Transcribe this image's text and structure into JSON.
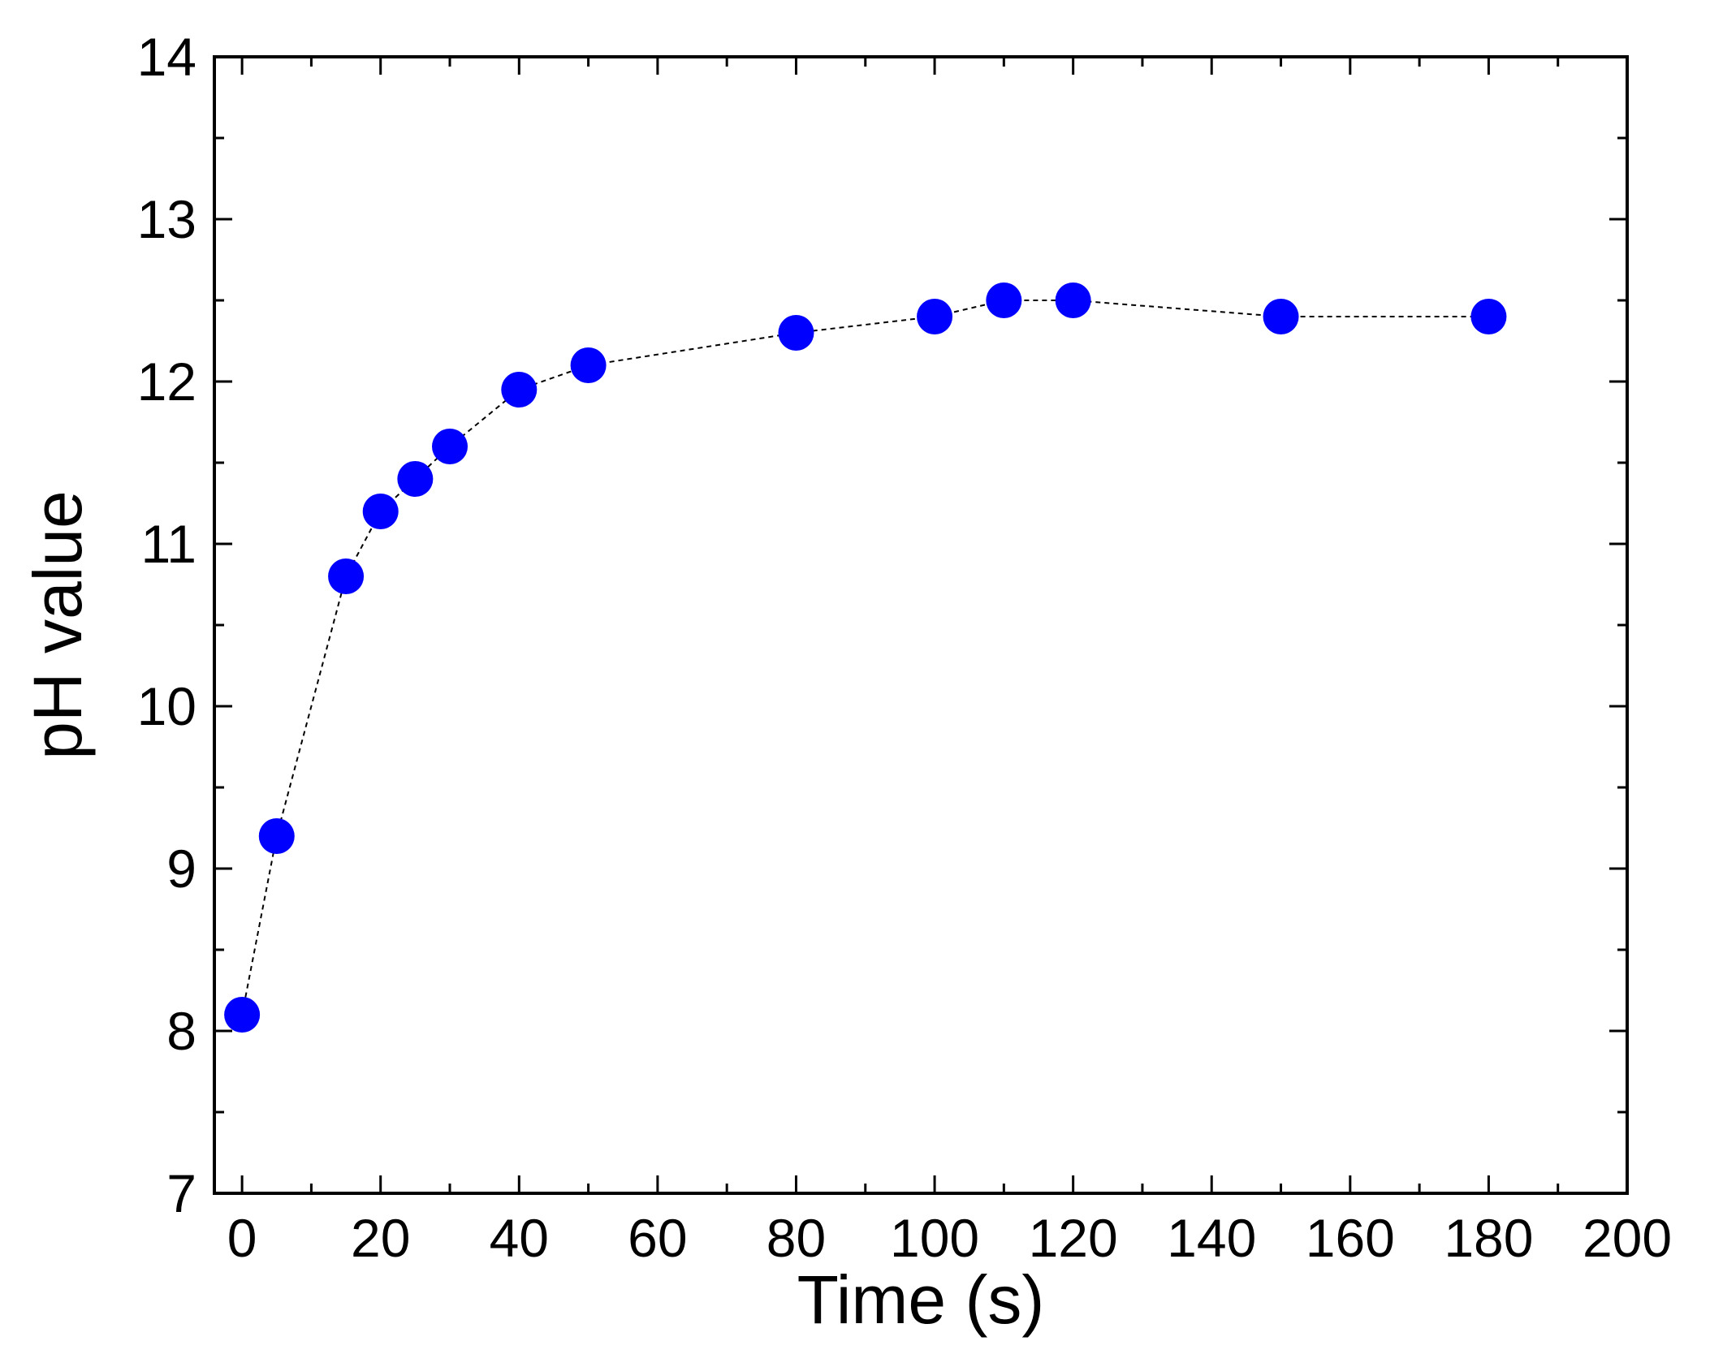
{
  "chart_data": {
    "type": "scatter",
    "title": "",
    "xlabel": "Time (s)",
    "ylabel": "pH value",
    "xlim": [
      -4,
      200
    ],
    "ylim": [
      7,
      14
    ],
    "x_ticks": [
      0,
      20,
      40,
      60,
      80,
      100,
      120,
      140,
      160,
      180,
      200
    ],
    "y_ticks": [
      7,
      8,
      9,
      10,
      11,
      12,
      13,
      14
    ],
    "x_minor_step": 10,
    "y_minor_step": 0.5,
    "grid": false,
    "connecting_line": "dashed",
    "marker": "filled-circle",
    "series": [
      {
        "color": "#0000ff",
        "line_color": "#000000",
        "points": [
          {
            "x": 0,
            "y": 8.1
          },
          {
            "x": 5,
            "y": 9.2
          },
          {
            "x": 15,
            "y": 10.8
          },
          {
            "x": 20,
            "y": 11.2
          },
          {
            "x": 25,
            "y": 11.4
          },
          {
            "x": 30,
            "y": 11.6
          },
          {
            "x": 40,
            "y": 11.95
          },
          {
            "x": 50,
            "y": 12.1
          },
          {
            "x": 80,
            "y": 12.3
          },
          {
            "x": 100,
            "y": 12.4
          },
          {
            "x": 110,
            "y": 12.5
          },
          {
            "x": 120,
            "y": 12.5
          },
          {
            "x": 150,
            "y": 12.4
          },
          {
            "x": 180,
            "y": 12.4
          }
        ]
      }
    ]
  }
}
